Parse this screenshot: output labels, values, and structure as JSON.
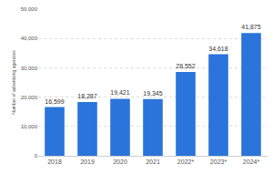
{
  "chart_data": {
    "type": "bar",
    "y_label": "Number of advertising agencies",
    "categories": [
      "2018",
      "2019",
      "2020",
      "2021",
      "2022*",
      "2023*",
      "2024*"
    ],
    "values": [
      16599,
      18287,
      19421,
      19345,
      28552,
      34618,
      41875
    ],
    "value_labels": [
      "16,599",
      "18,287",
      "19,421",
      "19,345",
      "28,552",
      "34,618",
      "41,875"
    ],
    "color": "#2a74db",
    "ylim": [
      0,
      50000
    ],
    "yticks": [
      0,
      {
        "value": 10000,
        "label": "10,000"
      },
      {
        "value": 20000,
        "label": "20,000"
      },
      {
        "value": 30000,
        "label": "30,000"
      },
      {
        "value": 40000,
        "label": "40,000"
      },
      {
        "value": 50000,
        "label": "50,000"
      }
    ],
    "grid": true,
    "data_labels": true
  }
}
